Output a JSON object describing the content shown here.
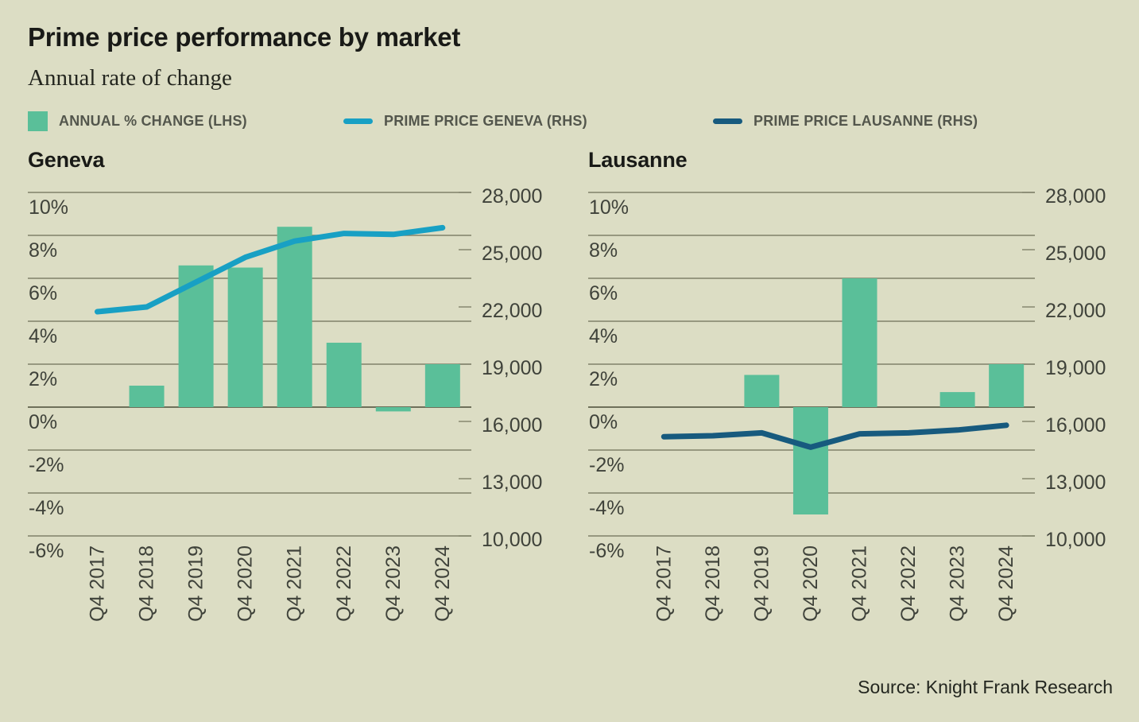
{
  "header": {
    "title": "Prime price performance by market",
    "subtitle": "Annual rate of change"
  },
  "legend": {
    "items": [
      {
        "label": "ANNUAL % CHANGE (LHS)",
        "swatch": "bar"
      },
      {
        "label": "PRIME PRICE GENEVA (RHS)",
        "swatch": "line-geneva"
      },
      {
        "label": "PRIME PRICE LAUSANNE (RHS)",
        "swatch": "line-lausanne"
      }
    ]
  },
  "colors": {
    "background": "#dcddc4",
    "bar": "#5abf99",
    "geneva_line": "#18a0c4",
    "lausanne_line": "#175a7e",
    "grid": "#80826a",
    "zero_axis": "#6e705a"
  },
  "source": "Source: Knight Frank Research",
  "chart_data": [
    {
      "type": "bar",
      "combo": "bar+line",
      "title": "Geneva",
      "categories": [
        "Q4 2017",
        "Q4 2018",
        "Q4 2019",
        "Q4 2020",
        "Q4 2021",
        "Q4 2022",
        "Q4 2023",
        "Q4 2024"
      ],
      "series": [
        {
          "name": "Annual % change (LHS)",
          "type": "bar",
          "axis": "left",
          "values": [
            null,
            1.0,
            6.6,
            6.5,
            8.4,
            3.0,
            -0.2,
            2.0
          ]
        },
        {
          "name": "Prime price Geneva (RHS)",
          "type": "line",
          "axis": "right",
          "values": [
            21750,
            22000,
            23300,
            24600,
            25450,
            25850,
            25800,
            26150
          ]
        }
      ],
      "left_axis": {
        "min": -6,
        "max": 10,
        "ticks": [
          "10%",
          "8%",
          "6%",
          "4%",
          "2%",
          "0%",
          "-2%",
          "-4%",
          "-6%"
        ]
      },
      "right_axis": {
        "min": 10000,
        "max": 28000,
        "ticks": [
          "28,000",
          "25,000",
          "22,000",
          "19,000",
          "16,000",
          "13,000",
          "10,000"
        ]
      },
      "grid": true,
      "legend_position": "top"
    },
    {
      "type": "bar",
      "combo": "bar+line",
      "title": "Lausanne",
      "categories": [
        "Q4 2017",
        "Q4 2018",
        "Q4 2019",
        "Q4 2020",
        "Q4 2021",
        "Q4 2022",
        "Q4 2023",
        "Q4 2024"
      ],
      "series": [
        {
          "name": "Annual % change (LHS)",
          "type": "bar",
          "axis": "left",
          "values": [
            null,
            0,
            1.5,
            -5.0,
            6.0,
            0,
            0.7,
            2.0
          ]
        },
        {
          "name": "Prime price Lausanne (RHS)",
          "type": "line",
          "axis": "right",
          "values": [
            15200,
            15250,
            15400,
            14650,
            15350,
            15400,
            15550,
            15800
          ]
        }
      ],
      "left_axis": {
        "min": -6,
        "max": 10,
        "ticks": [
          "10%",
          "8%",
          "6%",
          "4%",
          "2%",
          "0%",
          "-2%",
          "-4%",
          "-6%"
        ]
      },
      "right_axis": {
        "min": 10000,
        "max": 28000,
        "ticks": [
          "28,000",
          "25,000",
          "22,000",
          "19,000",
          "16,000",
          "13,000",
          "10,000"
        ]
      },
      "grid": true,
      "legend_position": "top"
    }
  ]
}
